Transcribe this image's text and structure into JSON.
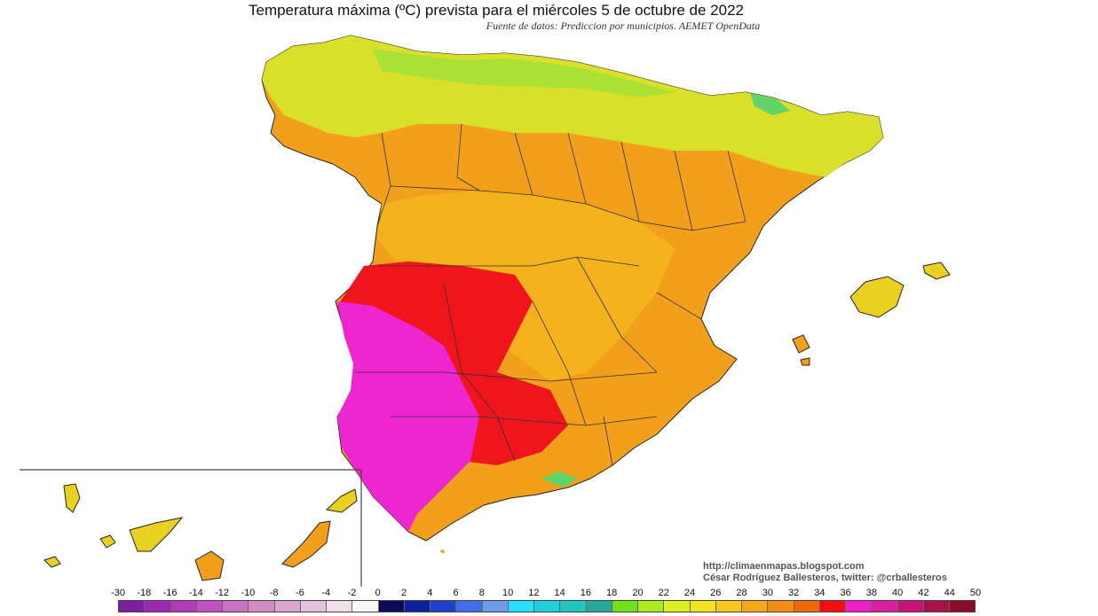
{
  "header": {
    "title": "Temperatura máxima (ºC) prevista para el miércoles 5 de octubre de 2022",
    "subtitle": "Fuente de datos: Prediccion por municipios. AEMET OpenData"
  },
  "credits": {
    "url": "http://climaenmapas.blogspot.com",
    "author": "César Rodríguez Ballesteros, twitter: @crballesteros"
  },
  "legend": {
    "ticks": [
      "-30",
      "-18",
      "-16",
      "-14",
      "-12",
      "-10",
      "-8",
      "-6",
      "-4",
      "-2",
      "0",
      "2",
      "4",
      "6",
      "8",
      "10",
      "12",
      "14",
      "16",
      "18",
      "20",
      "22",
      "24",
      "26",
      "28",
      "30",
      "32",
      "34",
      "36",
      "38",
      "40",
      "42",
      "44",
      "50"
    ],
    "colors": [
      "#7b1fa2",
      "#9c27b0",
      "#b23ab8",
      "#c04fc0",
      "#c873c0",
      "#cf8cc3",
      "#d8a6cc",
      "#e2c2dc",
      "#ece0ea",
      "#f7f7f7",
      "#0a0a5a",
      "#0e1e9c",
      "#1e3fd0",
      "#3f6ee8",
      "#6f9ae8",
      "#27e0ff",
      "#1fd0d8",
      "#22c4c0",
      "#26a89a",
      "#72e01e",
      "#a8ec1e",
      "#dcf21e",
      "#f2e41e",
      "#f8c81e",
      "#f6a81a",
      "#f68c12",
      "#f26808",
      "#f20c14",
      "#f01ec8",
      "#dc1ea0",
      "#c81478",
      "#a81048",
      "#8a0c2c"
    ]
  },
  "colors": {
    "cold_north": "#c7ea2a",
    "yellow": "#ead021",
    "orange": "#f4a71b",
    "dark_orange": "#ee7d14",
    "red": "#f0141c",
    "magenta": "#ee26cf",
    "green_highland": "#5fd46a",
    "border": "#333333"
  },
  "map": {
    "region": "Spain",
    "variable": "Temperatura máxima",
    "insets": [
      "Islas Canarias"
    ]
  }
}
